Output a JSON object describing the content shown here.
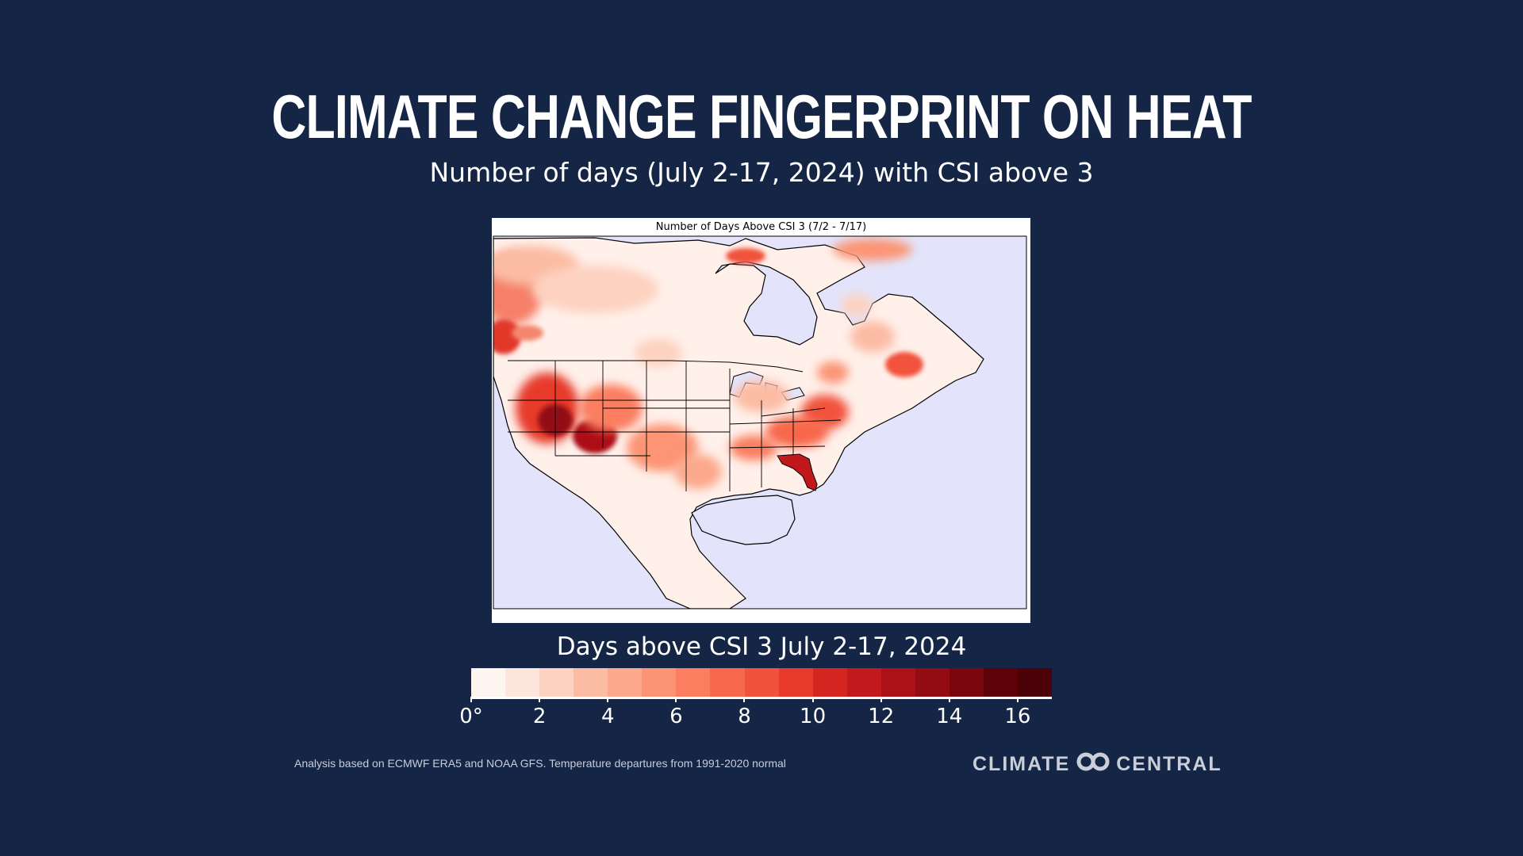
{
  "header": {
    "title": "CLIMATE CHANGE FINGERPRINT ON HEAT",
    "subtitle": "Number of days (July 2-17, 2024) with CSI above 3"
  },
  "map": {
    "inner_title": "Number of Days Above CSI 3 (7/2 - 7/17)",
    "ocean_color": "#e3e4fb",
    "land_base_color": "#fff0ea",
    "variable": "Number of days above CSI 3"
  },
  "legend": {
    "title": "Days above CSI 3 July 2-17, 2024",
    "colors": [
      "#fff5f0",
      "#fee6dc",
      "#fdd2c0",
      "#fcbca4",
      "#fca88c",
      "#fc9474",
      "#fb7e60",
      "#f7684c",
      "#f1523c",
      "#e73a2c",
      "#d52521",
      "#c2191c",
      "#ac1018",
      "#930b13",
      "#7a0610",
      "#5e0109",
      "#4c0008"
    ],
    "ticks": [
      {
        "label": "0°",
        "value": 0
      },
      {
        "label": "2",
        "value": 2
      },
      {
        "label": "4",
        "value": 4
      },
      {
        "label": "6",
        "value": 6
      },
      {
        "label": "8",
        "value": 8
      },
      {
        "label": "10",
        "value": 10
      },
      {
        "label": "12",
        "value": 12
      },
      {
        "label": "14",
        "value": 14
      },
      {
        "label": "16",
        "value": 16
      }
    ],
    "range": [
      0,
      17
    ]
  },
  "footer": {
    "note": "Analysis based on ECMWF ERA5 and NOAA GFS. Temperature departures from 1991-2020 normal",
    "brand_left": "CLIMATE",
    "brand_right": "CENTRAL",
    "logo_icon": "linked-rings-logo-icon"
  }
}
